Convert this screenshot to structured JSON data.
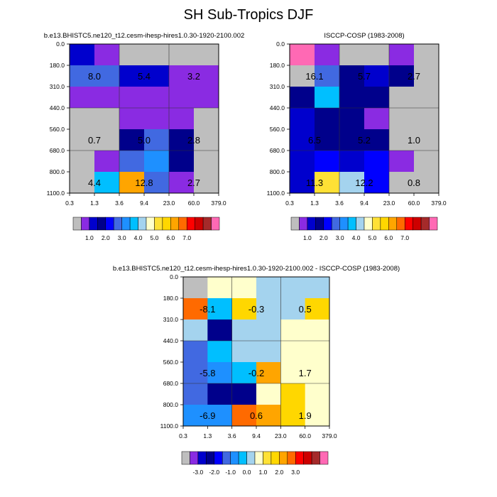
{
  "title": "SH Sub-Tropics DJF",
  "palettes": {
    "abs": [
      "#bebebe",
      "#8a2be2",
      "#0000cd",
      "#00008b",
      "#0000ff",
      "#4169e1",
      "#1e90ff",
      "#00bfff",
      "#a4d3ee",
      "#ffffcc",
      "#ffe135",
      "#ffd700",
      "#ffa500",
      "#ff6a00",
      "#ff0000",
      "#cd0000",
      "#a52a2a",
      "#ff69b4"
    ],
    "diff": [
      "#bebebe",
      "#8a2be2",
      "#0000cd",
      "#00008b",
      "#0000ff",
      "#4169e1",
      "#1e90ff",
      "#00bfff",
      "#a4d3ee",
      "#ffffcc",
      "#ffe135",
      "#ffd700",
      "#ffa500",
      "#ff6a00",
      "#ff0000",
      "#cd0000",
      "#a52a2a",
      "#ff69b4"
    ]
  },
  "chart_data": [
    {
      "type": "heatmap",
      "title": "b.e13.BHISTC5.ne120_t12.cesm-ihesp-hires1.0.30-1920-2100.002",
      "x_ticks": [
        "0.3",
        "1.3",
        "3.6",
        "9.4",
        "23.0",
        "60.0",
        "379.0"
      ],
      "y_ticks": [
        "0.0",
        "180.0",
        "310.0",
        "440.0",
        "560.0",
        "680.0",
        "800.0",
        "1100.0"
      ],
      "colorbar_labels": [
        "1.0",
        "2.0",
        "3.0",
        "4.0",
        "5.0",
        "6.0",
        "7.0"
      ],
      "palette": "abs",
      "cells": [
        [
          2,
          1,
          0,
          0,
          0,
          0
        ],
        [
          5,
          5,
          2,
          2,
          1,
          1
        ],
        [
          1,
          1,
          1,
          1,
          1,
          1
        ],
        [
          0,
          0,
          1,
          1,
          1,
          0
        ],
        [
          0,
          0,
          3,
          5,
          3,
          0
        ],
        [
          0,
          1,
          5,
          6,
          3,
          0
        ],
        [
          0,
          7,
          12,
          5,
          1,
          0
        ]
      ],
      "annotations": [
        {
          "col": 1,
          "row": 1.5,
          "text": "8.0"
        },
        {
          "col": 3,
          "row": 1.5,
          "text": "5.4"
        },
        {
          "col": 5,
          "row": 1.5,
          "text": "3.2"
        },
        {
          "col": 1,
          "row": 4.5,
          "text": "0.7"
        },
        {
          "col": 3,
          "row": 4.5,
          "text": "5.0"
        },
        {
          "col": 5,
          "row": 4.5,
          "text": "2.8"
        },
        {
          "col": 1,
          "row": 6.5,
          "text": "4.4"
        },
        {
          "col": 3,
          "row": 6.5,
          "text": "12.8"
        },
        {
          "col": 5,
          "row": 6.5,
          "text": "2.7"
        }
      ]
    },
    {
      "type": "heatmap",
      "title": "ISCCP-COSP (1983-2008)",
      "x_ticks": [
        "0.3",
        "1.3",
        "3.6",
        "9.4",
        "23.0",
        "60.0",
        "379.0"
      ],
      "y_ticks": [
        "0.0",
        "180.0",
        "310.0",
        "440.0",
        "560.0",
        "680.0",
        "800.0",
        "1100.0"
      ],
      "colorbar_labels": [
        "1.0",
        "2.0",
        "3.0",
        "4.0",
        "5.0",
        "6.0",
        "7.0"
      ],
      "palette": "abs",
      "cells": [
        [
          17,
          1,
          0,
          0,
          1,
          0
        ],
        [
          0,
          5,
          3,
          2,
          3,
          0
        ],
        [
          3,
          7,
          3,
          3,
          0,
          0
        ],
        [
          2,
          3,
          3,
          1,
          0,
          0
        ],
        [
          2,
          3,
          3,
          3,
          0,
          0
        ],
        [
          2,
          4,
          2,
          4,
          1,
          0
        ],
        [
          2,
          10,
          8,
          4,
          0,
          0
        ]
      ],
      "annotations": [
        {
          "col": 1,
          "row": 1.5,
          "text": "16.1"
        },
        {
          "col": 3,
          "row": 1.5,
          "text": "5.7"
        },
        {
          "col": 5,
          "row": 1.5,
          "text": "2.7"
        },
        {
          "col": 1,
          "row": 4.5,
          "text": "6.5"
        },
        {
          "col": 3,
          "row": 4.5,
          "text": "5.2"
        },
        {
          "col": 5,
          "row": 4.5,
          "text": "1.0"
        },
        {
          "col": 1,
          "row": 6.5,
          "text": "11.3"
        },
        {
          "col": 3,
          "row": 6.5,
          "text": "12.2"
        },
        {
          "col": 5,
          "row": 6.5,
          "text": "0.8"
        }
      ]
    },
    {
      "type": "heatmap",
      "title": "b.e13.BHISTC5.ne120_t12.cesm-ihesp-hires1.0.30-1920-2100.002 - ISCCP-COSP (1983-2008)",
      "x_ticks": [
        "0.3",
        "1.3",
        "3.6",
        "9.4",
        "23.0",
        "60.0",
        "379.0"
      ],
      "y_ticks": [
        "0.0",
        "180.0",
        "310.0",
        "440.0",
        "560.0",
        "680.0",
        "800.0",
        "1100.0"
      ],
      "colorbar_labels": [
        "-3.0",
        "-2.0",
        "-1.0",
        "0.0",
        "1.0",
        "2.0",
        "3.0"
      ],
      "palette": "diff",
      "cells": [
        [
          0,
          9,
          9,
          8,
          8,
          8
        ],
        [
          13,
          7,
          11,
          8,
          8,
          11
        ],
        [
          8,
          3,
          8,
          8,
          9,
          9
        ],
        [
          5,
          7,
          8,
          8,
          9,
          9
        ],
        [
          5,
          6,
          7,
          12,
          9,
          9
        ],
        [
          5,
          3,
          3,
          9,
          11,
          9
        ],
        [
          6,
          6,
          13,
          12,
          11,
          9
        ]
      ],
      "annotations": [
        {
          "col": 1,
          "row": 1.5,
          "text": "-8.1"
        },
        {
          "col": 3,
          "row": 1.5,
          "text": "-0.3"
        },
        {
          "col": 5,
          "row": 1.5,
          "text": "0.5"
        },
        {
          "col": 1,
          "row": 4.5,
          "text": "-5.8"
        },
        {
          "col": 3,
          "row": 4.5,
          "text": "-0.2"
        },
        {
          "col": 5,
          "row": 4.5,
          "text": "1.7"
        },
        {
          "col": 1,
          "row": 6.5,
          "text": "-6.9"
        },
        {
          "col": 3,
          "row": 6.5,
          "text": "0.6"
        },
        {
          "col": 5,
          "row": 6.5,
          "text": "1.9"
        }
      ]
    }
  ]
}
